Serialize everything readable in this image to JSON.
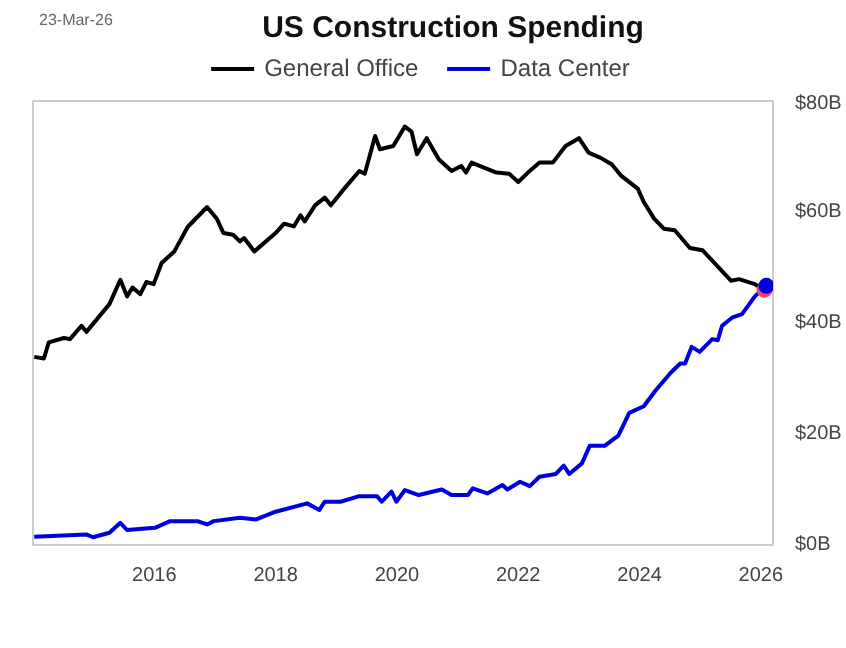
{
  "chart_data": {
    "type": "line",
    "title": "US Construction Spending",
    "annotations": [
      "23-Mar-26"
    ],
    "xlim": [
      2014.0,
      2026.2
    ],
    "xticks": [
      2016,
      2018,
      2020,
      2022,
      2024,
      2026
    ],
    "ylim": [
      0,
      80
    ],
    "yticks": [
      {
        "value": 0,
        "label": "$0B"
      },
      {
        "value": 20,
        "label": "$20B"
      },
      {
        "value": 40,
        "label": "$40B"
      },
      {
        "value": 60,
        "label": "$60B"
      },
      {
        "value": 80,
        "label": "$80B"
      }
    ],
    "grid": false,
    "legend": "top",
    "line_style": "solid",
    "marker": "none",
    "series": [
      {
        "name": "General Office",
        "color": "#000000",
        "x": [
          2014.02,
          2014.18,
          2014.26,
          2014.51,
          2014.61,
          2014.8,
          2014.88,
          2015.26,
          2015.44,
          2015.55,
          2015.64,
          2015.77,
          2015.87,
          2015.99,
          2016.12,
          2016.33,
          2016.55,
          2016.87,
          2017.03,
          2017.14,
          2017.3,
          2017.41,
          2017.48,
          2017.65,
          2018.0,
          2018.14,
          2018.3,
          2018.41,
          2018.48,
          2018.65,
          2018.81,
          2018.91,
          2019.1,
          2019.38,
          2019.47,
          2019.64,
          2019.72,
          2019.94,
          2020.13,
          2020.24,
          2020.33,
          2020.49,
          2020.69,
          2020.9,
          2021.06,
          2021.14,
          2021.23,
          2021.64,
          2021.85,
          2022.0,
          2022.19,
          2022.35,
          2022.57,
          2022.78,
          2023.0,
          2023.16,
          2023.35,
          2023.54,
          2023.7,
          2023.97,
          2024.07,
          2024.24,
          2024.4,
          2024.58,
          2024.83,
          2025.04,
          2025.26,
          2025.51,
          2025.64,
          2025.9,
          2026.06
        ],
        "values": [
          33.9,
          33.6,
          36.5,
          37.3,
          37.1,
          39.5,
          38.4,
          43.4,
          47.8,
          44.8,
          46.4,
          45.2,
          47.4,
          47.0,
          50.8,
          52.9,
          57.3,
          60.9,
          58.8,
          56.2,
          55.9,
          54.7,
          55.3,
          52.9,
          56.2,
          57.9,
          57.4,
          59.4,
          58.3,
          61.2,
          62.6,
          61.2,
          63.8,
          67.4,
          66.9,
          73.7,
          71.3,
          71.9,
          75.4,
          74.5,
          70.4,
          73.3,
          69.5,
          67.4,
          68.3,
          67.1,
          68.9,
          67.1,
          66.9,
          65.4,
          67.4,
          68.9,
          68.9,
          71.9,
          73.3,
          70.7,
          69.8,
          68.6,
          66.5,
          64.2,
          61.8,
          58.8,
          57.0,
          56.7,
          53.5,
          53.1,
          50.5,
          47.6,
          47.9,
          47.0,
          46.0
        ]
      },
      {
        "name": "Data Center",
        "color": "#0000dd",
        "x": [
          2014.02,
          2014.88,
          2014.99,
          2015.26,
          2015.44,
          2015.55,
          2016.01,
          2016.26,
          2016.71,
          2016.87,
          2016.98,
          2017.41,
          2017.68,
          2018.0,
          2018.52,
          2018.72,
          2018.81,
          2019.07,
          2019.38,
          2019.67,
          2019.75,
          2019.91,
          2019.99,
          2020.13,
          2020.36,
          2020.74,
          2020.9,
          2021.17,
          2021.25,
          2021.49,
          2021.74,
          2021.82,
          2022.03,
          2022.19,
          2022.35,
          2022.62,
          2022.75,
          2022.84,
          2023.05,
          2023.18,
          2023.43,
          2023.65,
          2023.83,
          2024.07,
          2024.26,
          2024.51,
          2024.67,
          2024.75,
          2024.86,
          2024.99,
          2025.2,
          2025.29,
          2025.36,
          2025.53,
          2025.69,
          2025.9,
          2026.09
        ],
        "values": [
          1.5,
          1.9,
          1.4,
          2.2,
          4.0,
          2.7,
          3.1,
          4.3,
          4.3,
          3.7,
          4.3,
          4.9,
          4.6,
          6.0,
          7.5,
          6.3,
          7.8,
          7.8,
          8.8,
          8.8,
          7.8,
          9.6,
          7.8,
          9.9,
          9.0,
          10.0,
          9.0,
          9.0,
          10.2,
          9.3,
          10.8,
          10.0,
          11.4,
          10.6,
          12.3,
          12.8,
          14.3,
          12.8,
          14.7,
          17.9,
          17.9,
          19.7,
          23.8,
          25.0,
          27.8,
          31.0,
          32.7,
          32.7,
          35.7,
          34.8,
          37.1,
          36.9,
          39.5,
          41.0,
          41.6,
          44.8,
          46.7
        ]
      },
      {
        "type": "scatter",
        "marker": "circle",
        "color": "#ff4060",
        "x": [
          2026.06
        ],
        "values": [
          46.0
        ]
      },
      {
        "type": "scatter",
        "marker": "circle",
        "color": "#0000dd",
        "x": [
          2026.09
        ],
        "values": [
          46.7
        ]
      }
    ]
  }
}
